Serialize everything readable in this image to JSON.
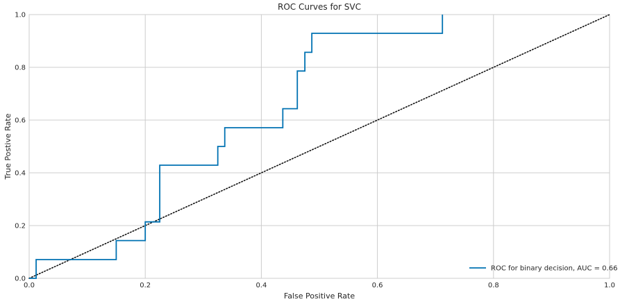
{
  "chart_data": {
    "type": "line",
    "title": "ROC Curves for SVC",
    "xlabel": "False Positive Rate",
    "ylabel": "True Postive Rate",
    "xlim": [
      0,
      1
    ],
    "ylim": [
      0,
      1
    ],
    "grid": true,
    "xticks": [
      "0.0",
      "0.2",
      "0.4",
      "0.6",
      "0.8",
      "1.0"
    ],
    "yticks": [
      "0.0",
      "0.2",
      "0.4",
      "0.6",
      "0.8",
      "1.0"
    ],
    "legend_placement": "lower-right",
    "series": [
      {
        "name": "ROC for binary decision, AUC = 0.66",
        "color": "#0072b2",
        "x": [
          0,
          0.012,
          0.012,
          0.15,
          0.15,
          0.2,
          0.2,
          0.225,
          0.225,
          0.325,
          0.325,
          0.337,
          0.337,
          0.437,
          0.437,
          0.462,
          0.462,
          0.475,
          0.475,
          0.487,
          0.487,
          0.712,
          0.712
        ],
        "y": [
          0,
          0,
          0.071,
          0.071,
          0.143,
          0.143,
          0.214,
          0.214,
          0.429,
          0.429,
          0.5,
          0.5,
          0.571,
          0.571,
          0.643,
          0.643,
          0.786,
          0.786,
          0.857,
          0.857,
          0.929,
          0.929,
          1.0
        ]
      }
    ],
    "reference_line": {
      "x": [
        0,
        1
      ],
      "y": [
        0,
        1
      ],
      "color": "#111111",
      "style": "dotted"
    }
  }
}
